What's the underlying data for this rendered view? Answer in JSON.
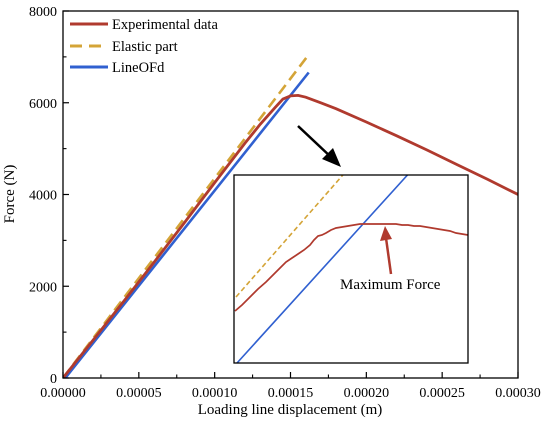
{
  "chart_data": {
    "type": "line",
    "xlabel": "Loading line displacement (m)",
    "ylabel": "Force (N)",
    "xlim": [
      0,
      0.0003
    ],
    "ylim": [
      0,
      8000
    ],
    "x_ticks": [
      0,
      5e-05,
      0.0001,
      0.00015,
      0.0002,
      0.00025,
      0.0003
    ],
    "x_tick_labels": [
      "0.00000",
      "0.00005",
      "0.00010",
      "0.00015",
      "0.00020",
      "0.00025",
      "0.00030"
    ],
    "y_ticks": [
      0,
      2000,
      4000,
      6000,
      8000
    ],
    "y_tick_labels": [
      "0",
      "2000",
      "4000",
      "6000",
      "8000"
    ],
    "grid": false,
    "legend_position": "top-left",
    "series": [
      {
        "name": "Experimental data",
        "color": "#b03a2e",
        "style": "solid",
        "x": [
          0,
          2e-05,
          4e-05,
          6e-05,
          8e-05,
          0.0001,
          0.00012,
          0.00013,
          0.00014,
          0.000145,
          0.00015,
          0.000155,
          0.00016,
          0.00017,
          0.00018,
          0.0002,
          0.00022,
          0.00024,
          0.00026,
          0.00028,
          0.0003
        ],
        "y": [
          0,
          830,
          1670,
          2520,
          3380,
          4260,
          5120,
          5530,
          5900,
          6080,
          6150,
          6160,
          6120,
          6000,
          5870,
          5580,
          5280,
          4970,
          4650,
          4330,
          4000
        ]
      },
      {
        "name": "Elastic part",
        "color": "#d4a437",
        "style": "dashed",
        "x": [
          0,
          0.000162
        ],
        "y": [
          0,
          7050
        ]
      },
      {
        "name": "LineOFd",
        "color": "#3060d0",
        "style": "solid",
        "x": [
          1.5e-06,
          0.000162
        ],
        "y": [
          0,
          6660
        ]
      }
    ],
    "inset": {
      "annotation": "Maximum Force",
      "line_colors": {
        "experimental": "#b03a2e",
        "elastic": "#d4a437",
        "lineofd": "#3060d0"
      }
    }
  }
}
